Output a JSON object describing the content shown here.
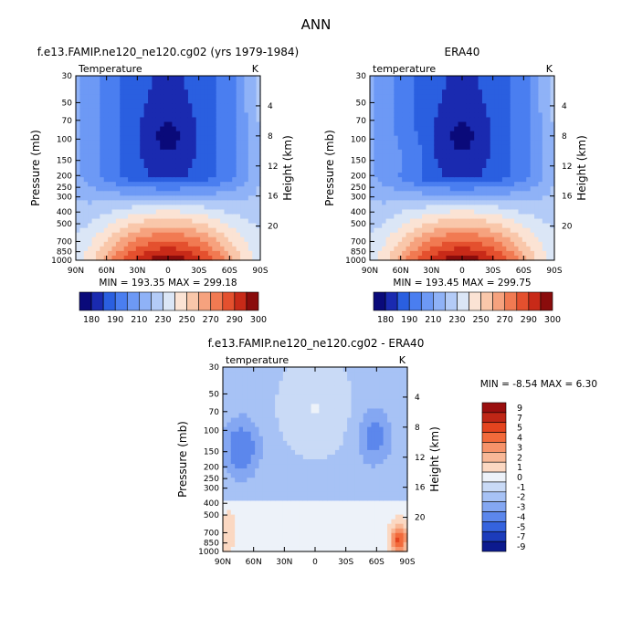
{
  "figure_title": "ANN",
  "chart_data": [
    {
      "type": "heatmap",
      "case_title": "f.e13.FAMIP.ne120_ne120.cg02 (yrs 1979-1984)",
      "variable_label": "Temperature",
      "units": "K",
      "xlabel": "",
      "ylabel": "Pressure (mb)",
      "y2label": "Height (km)",
      "x_ticks": [
        "90N",
        "60N",
        "30N",
        "0",
        "30S",
        "60S",
        "90S"
      ],
      "y_ticks": [
        "30",
        "50",
        "70",
        "100",
        "150",
        "200",
        "250",
        "300",
        "400",
        "500",
        "700",
        "850",
        "1000"
      ],
      "y2_ticks": [
        "20",
        "16",
        "12",
        "8",
        "4"
      ],
      "stats": "MIN = 193.35   MAX = 299.18",
      "colorbar_labels": [
        "180",
        "190",
        "210",
        "230",
        "250",
        "270",
        "290",
        "300"
      ],
      "min": 193.35,
      "max": 299.18
    },
    {
      "type": "heatmap",
      "case_title": "ERA40",
      "variable_label": "temperature",
      "units": "K",
      "xlabel": "",
      "ylabel": "Pressure (mb)",
      "y2label": "Height (km)",
      "x_ticks": [
        "90N",
        "60N",
        "30N",
        "0",
        "30S",
        "60S",
        "90S"
      ],
      "y_ticks": [
        "30",
        "50",
        "70",
        "100",
        "150",
        "200",
        "250",
        "300",
        "400",
        "500",
        "700",
        "850",
        "1000"
      ],
      "y2_ticks": [
        "20",
        "16",
        "12",
        "8",
        "4"
      ],
      "stats": "MIN = 193.45   MAX = 299.75",
      "colorbar_labels": [
        "180",
        "190",
        "210",
        "230",
        "250",
        "270",
        "290",
        "300"
      ],
      "min": 193.45,
      "max": 299.75
    },
    {
      "type": "heatmap",
      "case_title": "f.e13.FAMIP.ne120_ne120.cg02 - ERA40",
      "variable_label": "temperature",
      "units": "K",
      "xlabel": "",
      "ylabel": "Pressure (mb)",
      "y2label": "Height (km)",
      "x_ticks": [
        "90N",
        "60N",
        "30N",
        "0",
        "30S",
        "60S",
        "90S"
      ],
      "y_ticks": [
        "30",
        "50",
        "70",
        "100",
        "150",
        "200",
        "250",
        "300",
        "400",
        "500",
        "700",
        "850",
        "1000"
      ],
      "y2_ticks": [
        "20",
        "16",
        "12",
        "8",
        "4"
      ],
      "stats": "MIN = -8.54   MAX =   6.30",
      "colorbar_labels": [
        "9",
        "7",
        "5",
        "4",
        "3",
        "2",
        "1",
        "0",
        "-1",
        "-2",
        "-3",
        "-4",
        "-5",
        "-7",
        "-9"
      ],
      "min": -8.54,
      "max": 6.3
    }
  ],
  "colors": {
    "temp_scale": [
      "#0a0a7a",
      "#1a2ab0",
      "#2a5fe0",
      "#4a7ef0",
      "#6d99f5",
      "#8fb2f7",
      "#b3cbf7",
      "#dbe6f6",
      "#fbe3d4",
      "#f9c7aa",
      "#f6a27e",
      "#f17a52",
      "#e4502e",
      "#c82a18",
      "#8a0c0c"
    ],
    "diff_scale": [
      "#9a0e0e",
      "#bf2616",
      "#e4441f",
      "#f26a3b",
      "#f6936a",
      "#f8b897",
      "#fbd8c2",
      "#edf2f9",
      "#c9daf6",
      "#a7c2f5",
      "#84a7f2",
      "#5c87ec",
      "#3563de",
      "#1c3cbb",
      "#0c1a8e"
    ]
  }
}
